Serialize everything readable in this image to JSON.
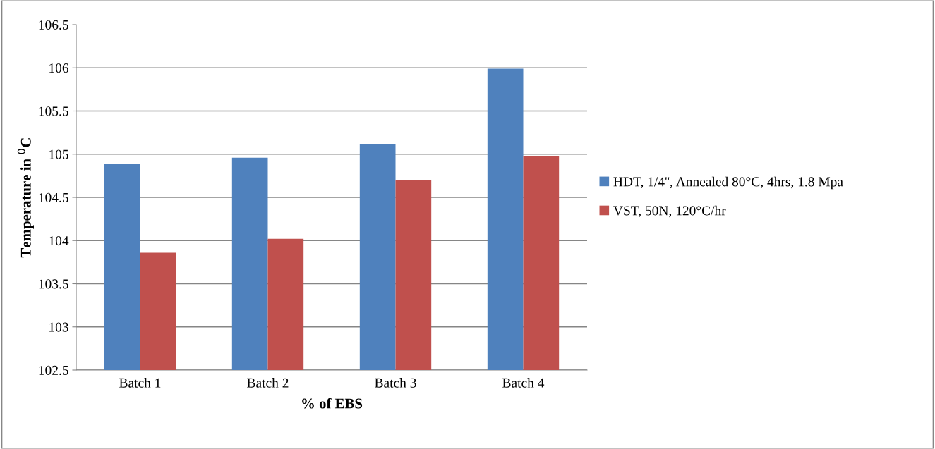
{
  "chart_data": {
    "type": "bar",
    "xlabel": "% of EBS",
    "ylabel": "Temperature in $^{0}$C",
    "categories": [
      "Batch 1",
      "Batch 2",
      "Batch 3",
      "Batch 4"
    ],
    "series": [
      {
        "name": "HDT, 1/4'', Annealed 80°C, 4hrs, 1.8 Mpa",
        "color": "#4f81bd",
        "values": [
          104.89,
          104.96,
          105.12,
          105.99
        ]
      },
      {
        "name": "VST, 50N, 120°C/hr",
        "color": "#c0504d",
        "values": [
          103.86,
          104.02,
          104.7,
          104.98
        ]
      }
    ],
    "ylim": [
      102.5,
      106.5
    ],
    "yticks": [
      102.5,
      103,
      103.5,
      104,
      104.5,
      105,
      105.5,
      106,
      106.5
    ],
    "grid": "y",
    "legend": "right"
  }
}
